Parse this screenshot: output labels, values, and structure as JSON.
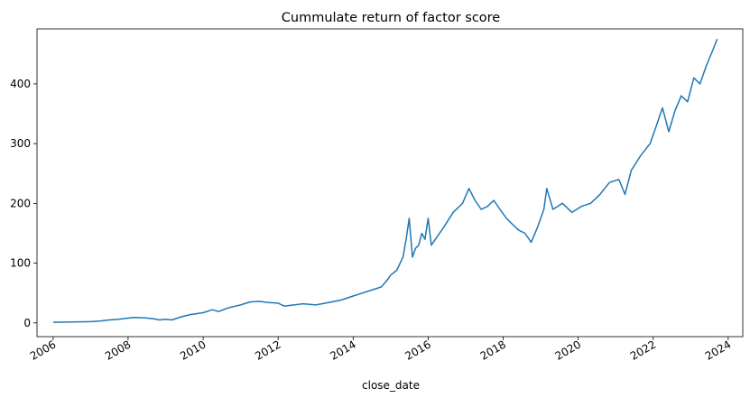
{
  "chart_data": {
    "type": "line",
    "title": "Cummulate return of factor score",
    "xlabel": "close_date",
    "ylabel": "",
    "x_tick_labels": [
      "2006",
      "2008",
      "2010",
      "2012",
      "2014",
      "2016",
      "2018",
      "2020",
      "2022",
      "2024"
    ],
    "y_tick_labels": [
      "0",
      "100",
      "200",
      "300",
      "400"
    ],
    "xlim": [
      "2005-07-28",
      "2024-05-22"
    ],
    "ylim": [
      -23,
      492
    ],
    "grid": false,
    "line_color": "#1f77b4",
    "series": [
      {
        "name": "",
        "points": [
          [
            "2006-01-01",
            1
          ],
          [
            "2006-07-01",
            1.5
          ],
          [
            "2007-01-01",
            2
          ],
          [
            "2007-04-01",
            3
          ],
          [
            "2007-07-01",
            5
          ],
          [
            "2007-10-01",
            6
          ],
          [
            "2008-01-01",
            8
          ],
          [
            "2008-03-01",
            9
          ],
          [
            "2008-06-01",
            8.5
          ],
          [
            "2008-09-01",
            7
          ],
          [
            "2008-11-01",
            5
          ],
          [
            "2009-01-01",
            6
          ],
          [
            "2009-03-01",
            5
          ],
          [
            "2009-06-01",
            10
          ],
          [
            "2009-09-01",
            14
          ],
          [
            "2010-01-01",
            17
          ],
          [
            "2010-04-01",
            22
          ],
          [
            "2010-06-01",
            19
          ],
          [
            "2010-09-01",
            25
          ],
          [
            "2011-01-01",
            30
          ],
          [
            "2011-04-01",
            35
          ],
          [
            "2011-07-01",
            36
          ],
          [
            "2011-10-01",
            34
          ],
          [
            "2012-01-01",
            33
          ],
          [
            "2012-03-01",
            28
          ],
          [
            "2012-06-01",
            30
          ],
          [
            "2012-09-01",
            32
          ],
          [
            "2013-01-01",
            30
          ],
          [
            "2013-03-01",
            32
          ],
          [
            "2013-06-01",
            35
          ],
          [
            "2013-09-01",
            38
          ],
          [
            "2014-01-01",
            45
          ],
          [
            "2014-04-01",
            50
          ],
          [
            "2014-07-01",
            55
          ],
          [
            "2014-10-01",
            60
          ],
          [
            "2014-12-01",
            72
          ],
          [
            "2015-01-01",
            80
          ],
          [
            "2015-03-01",
            88
          ],
          [
            "2015-05-01",
            110
          ],
          [
            "2015-06-01",
            140
          ],
          [
            "2015-07-01",
            175
          ],
          [
            "2015-08-01",
            110
          ],
          [
            "2015-09-01",
            125
          ],
          [
            "2015-10-01",
            130
          ],
          [
            "2015-11-01",
            150
          ],
          [
            "2015-12-01",
            140
          ],
          [
            "2016-01-01",
            175
          ],
          [
            "2016-02-01",
            130
          ],
          [
            "2016-04-01",
            145
          ],
          [
            "2016-06-01",
            160
          ],
          [
            "2016-09-01",
            185
          ],
          [
            "2016-12-01",
            200
          ],
          [
            "2017-02-01",
            225
          ],
          [
            "2017-04-01",
            205
          ],
          [
            "2017-06-01",
            190
          ],
          [
            "2017-08-01",
            195
          ],
          [
            "2017-10-01",
            205
          ],
          [
            "2017-12-01",
            190
          ],
          [
            "2018-02-01",
            175
          ],
          [
            "2018-04-01",
            165
          ],
          [
            "2018-06-01",
            155
          ],
          [
            "2018-08-01",
            150
          ],
          [
            "2018-10-01",
            135
          ],
          [
            "2018-12-01",
            160
          ],
          [
            "2019-02-01",
            190
          ],
          [
            "2019-03-01",
            225
          ],
          [
            "2019-05-01",
            190
          ],
          [
            "2019-08-01",
            200
          ],
          [
            "2019-11-01",
            185
          ],
          [
            "2020-02-01",
            195
          ],
          [
            "2020-05-01",
            200
          ],
          [
            "2020-08-01",
            215
          ],
          [
            "2020-11-01",
            235
          ],
          [
            "2021-02-01",
            240
          ],
          [
            "2021-04-01",
            215
          ],
          [
            "2021-06-01",
            255
          ],
          [
            "2021-09-01",
            280
          ],
          [
            "2021-12-01",
            300
          ],
          [
            "2022-02-01",
            330
          ],
          [
            "2022-04-01",
            360
          ],
          [
            "2022-06-01",
            320
          ],
          [
            "2022-08-01",
            355
          ],
          [
            "2022-10-01",
            380
          ],
          [
            "2022-12-01",
            370
          ],
          [
            "2023-02-01",
            410
          ],
          [
            "2023-04-01",
            400
          ],
          [
            "2023-06-01",
            430
          ],
          [
            "2023-08-01",
            455
          ],
          [
            "2023-09-15",
            475
          ]
        ]
      }
    ]
  }
}
